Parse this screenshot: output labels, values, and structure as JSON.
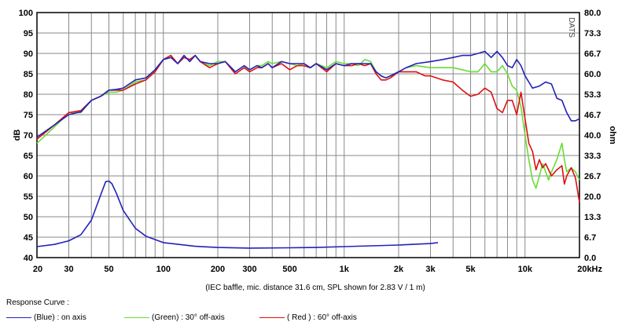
{
  "chart_data": {
    "type": "line",
    "y_label": "dB",
    "y2_label": "ohm",
    "watermark": "DATS",
    "caption": "(IEC baffle, mic. distance 31.6 cm, SPL shown for 2.83 V / 1 m)",
    "x_scale": "log",
    "x_range": [
      20,
      20000
    ],
    "ylim": [
      40,
      100
    ],
    "y2lim": [
      0,
      80
    ],
    "x_ticks": [
      20,
      30,
      50,
      100,
      200,
      300,
      500,
      1000,
      2000,
      3000,
      5000,
      10000,
      20000
    ],
    "x_tick_labels": [
      "20",
      "30",
      "50",
      "100",
      "200",
      "300",
      "500",
      "1k",
      "2k",
      "3k",
      "5k",
      "10k",
      "20kHz"
    ],
    "y_ticks": [
      "40",
      "45",
      "50",
      "55",
      "60",
      "65",
      "70",
      "75",
      "80",
      "85",
      "90",
      "95",
      "100"
    ],
    "y2_ticks": [
      "0.0",
      "6.7",
      "13.3",
      "20.0",
      "26.7",
      "33.3",
      "40.0",
      "46.7",
      "53.3",
      "60.0",
      "66.7",
      "73.3",
      "80.0"
    ],
    "grid": true,
    "series": [
      {
        "name": "(Blue)  : on axis",
        "color": "#2222bb",
        "x": [
          20,
          25,
          30,
          35,
          40,
          45,
          50,
          55,
          60,
          70,
          80,
          90,
          100,
          110,
          120,
          130,
          140,
          150,
          160,
          180,
          200,
          220,
          250,
          280,
          300,
          330,
          350,
          380,
          400,
          450,
          500,
          550,
          600,
          650,
          700,
          800,
          900,
          1000,
          1100,
          1200,
          1300,
          1400,
          1500,
          1600,
          1700,
          1800,
          2000,
          2200,
          2500,
          3000,
          3500,
          4000,
          4500,
          5000,
          5500,
          6000,
          6500,
          7000,
          7500,
          8000,
          8500,
          9000,
          9500,
          10000,
          11000,
          12000,
          13000,
          14000,
          15000,
          16000,
          17000,
          18000,
          19000,
          20000
        ],
        "y": [
          69.5,
          72.5,
          75,
          75.7,
          78.5,
          79.5,
          81,
          81.2,
          81.5,
          83.5,
          84,
          86,
          88.5,
          89,
          87.5,
          89.5,
          88,
          89.5,
          88,
          87.5,
          87.5,
          88,
          85.5,
          87,
          86,
          87,
          86.5,
          87.5,
          86.5,
          88,
          87.5,
          87.5,
          87.5,
          86.5,
          87.5,
          86,
          87.5,
          87,
          87.5,
          87.5,
          87.5,
          87.5,
          85.5,
          84.5,
          84,
          84.5,
          85.5,
          86.5,
          87.5,
          88,
          88.5,
          89,
          89.5,
          89.5,
          90,
          90.5,
          89,
          90.5,
          89,
          87,
          86.5,
          88.5,
          87,
          84.5,
          81.5,
          82,
          83,
          82.5,
          79,
          78.5,
          75.5,
          73.5,
          73.5,
          74
        ]
      },
      {
        "name": "(Green) : 30° off-axis",
        "color": "#66dd33",
        "x": [
          20,
          25,
          30,
          35,
          40,
          45,
          50,
          55,
          60,
          70,
          80,
          90,
          100,
          110,
          120,
          130,
          140,
          150,
          160,
          180,
          200,
          220,
          250,
          280,
          300,
          330,
          350,
          380,
          400,
          450,
          500,
          550,
          600,
          650,
          700,
          800,
          900,
          1000,
          1100,
          1200,
          1300,
          1400,
          1500,
          1600,
          1700,
          1800,
          2000,
          2200,
          2500,
          3000,
          3500,
          4000,
          4500,
          5000,
          5500,
          6000,
          6500,
          7000,
          7500,
          8000,
          8500,
          9000,
          9500,
          10000,
          10500,
          11000,
          11500,
          12000,
          12500,
          13000,
          13500,
          14000,
          15000,
          16000,
          16500,
          17000,
          18000,
          19000,
          20000
        ],
        "y": [
          68,
          72,
          75.5,
          75.5,
          78.5,
          79.5,
          80.5,
          80.5,
          81,
          83,
          83.5,
          86,
          88.5,
          89.5,
          87.5,
          89,
          88.5,
          89.5,
          88,
          87,
          88,
          88,
          85.5,
          87,
          86,
          87,
          87,
          88,
          87.5,
          88,
          87.5,
          87,
          87.5,
          86.5,
          87.5,
          86.5,
          88,
          87.5,
          87.5,
          87,
          88.5,
          88,
          85.5,
          84.5,
          84,
          84.5,
          85.5,
          86.5,
          87,
          86.5,
          86.5,
          86.5,
          86,
          85.5,
          85.5,
          87.5,
          85.5,
          85.5,
          87,
          85,
          82,
          81,
          77,
          70,
          64,
          59,
          57,
          60,
          63,
          61,
          59,
          61,
          64,
          68,
          64,
          61,
          62,
          61,
          59
        ]
      },
      {
        "name": "( Red ) : 60° off-axis",
        "color": "#dd1111",
        "x": [
          20,
          25,
          30,
          35,
          40,
          45,
          50,
          55,
          60,
          70,
          80,
          90,
          100,
          110,
          120,
          130,
          140,
          150,
          160,
          180,
          200,
          220,
          250,
          280,
          300,
          330,
          350,
          380,
          400,
          450,
          500,
          550,
          600,
          650,
          700,
          800,
          900,
          1000,
          1100,
          1200,
          1300,
          1400,
          1500,
          1600,
          1700,
          1800,
          2000,
          2200,
          2500,
          2800,
          3000,
          3500,
          4000,
          4500,
          5000,
          5500,
          6000,
          6500,
          7000,
          7500,
          8000,
          8500,
          9000,
          9500,
          10000,
          10500,
          11000,
          11500,
          12000,
          12500,
          13000,
          14000,
          15000,
          16000,
          16500,
          17000,
          18000,
          19000,
          20000
        ],
        "y": [
          69,
          72.5,
          75.5,
          76,
          78.5,
          79.5,
          81,
          81,
          81,
          82.5,
          83.5,
          85.5,
          88.5,
          89.5,
          87.5,
          89,
          88.5,
          89.5,
          88,
          86.5,
          87.5,
          88,
          85,
          86.5,
          85.5,
          86.5,
          86.5,
          87.5,
          86.5,
          87.5,
          86,
          87,
          87,
          86.5,
          87.5,
          85.5,
          87.5,
          87,
          87,
          87.5,
          87,
          87.5,
          85,
          83.5,
          83.5,
          84,
          85.5,
          85.5,
          85.5,
          84.5,
          84.5,
          83.5,
          83,
          81,
          79.5,
          80,
          81.5,
          80.5,
          76.5,
          75.5,
          78.5,
          78.5,
          75,
          80.5,
          74,
          68,
          66,
          61.5,
          64,
          62,
          63,
          60,
          61.5,
          62.5,
          58,
          60,
          62,
          59.5,
          53.5
        ]
      }
    ],
    "impedance": {
      "color": "#2222bb",
      "x": [
        20,
        25,
        30,
        35,
        40,
        45,
        48,
        50,
        52,
        55,
        60,
        70,
        80,
        100,
        150,
        200,
        300,
        500,
        700,
        1000,
        2000,
        3000,
        3300
      ],
      "ohm": [
        3.6,
        4.3,
        5.5,
        7.5,
        12.2,
        20.4,
        24.8,
        25.0,
        24.1,
        21.0,
        15.4,
        9.6,
        7.0,
        4.9,
        3.7,
        3.3,
        3.1,
        3.2,
        3.3,
        3.6,
        4.1,
        4.6,
        4.9
      ]
    },
    "legend_title": "Response Curve :"
  }
}
